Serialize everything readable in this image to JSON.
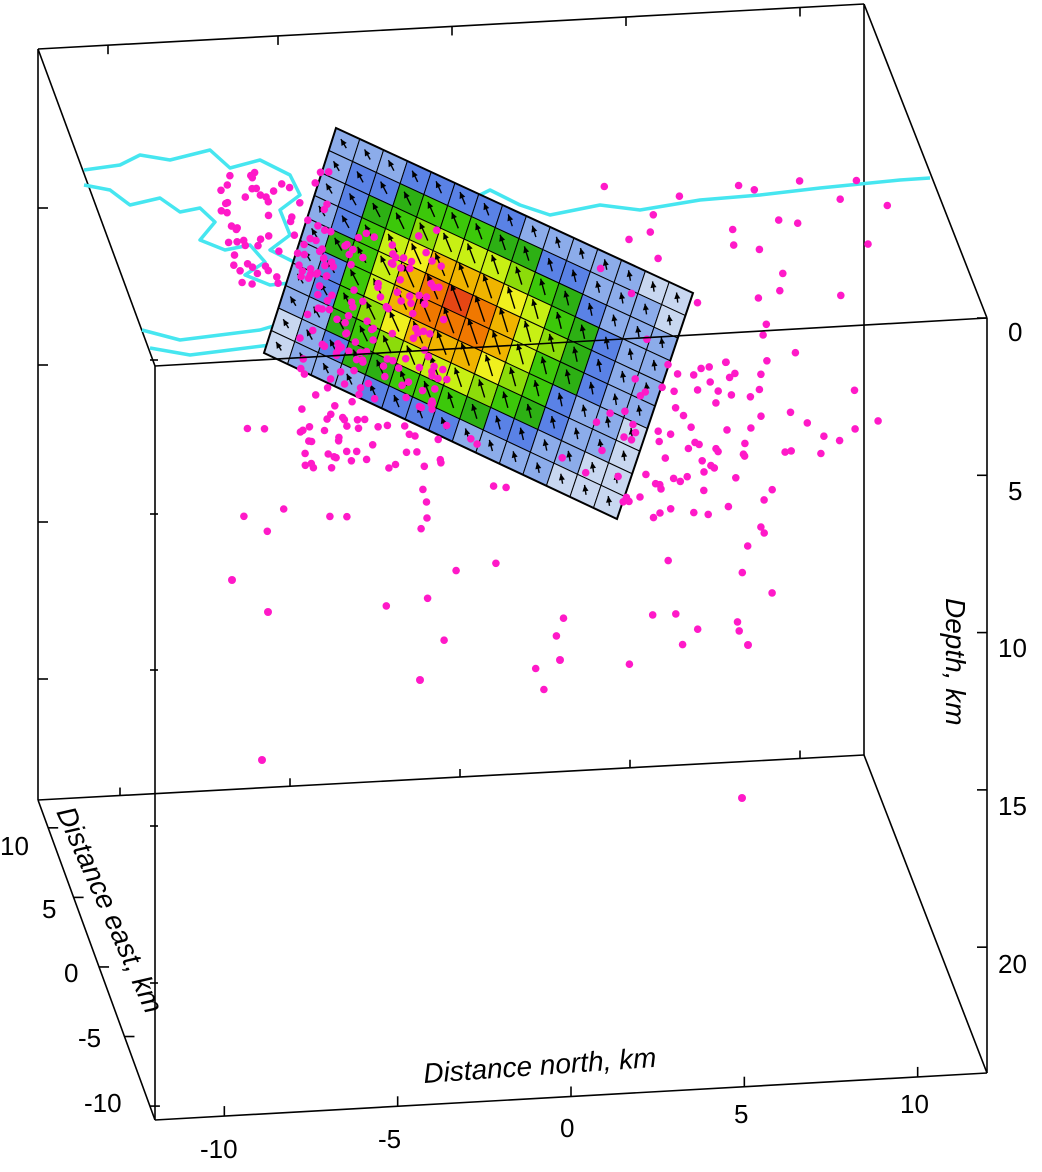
{
  "chart_data": {
    "type": "scatter",
    "title": "",
    "axes": {
      "x": {
        "label": "Distance north, km",
        "ticks": [
          "-10",
          "-5",
          "0",
          "5",
          "10"
        ],
        "range": [
          -12,
          12
        ]
      },
      "y": {
        "label": "Distance east, km",
        "ticks": [
          "10",
          "5",
          "0",
          "-5",
          "-10"
        ],
        "range": [
          -11,
          12
        ]
      },
      "z": {
        "label": "Depth, km",
        "ticks": [
          "0",
          "5",
          "10",
          "15",
          "20"
        ],
        "range": [
          0,
          24
        ]
      }
    },
    "grid": false,
    "series": [
      {
        "kind": "scatter",
        "color": "#ff19c8",
        "count_shown": 400,
        "description_of_distribution": "cluster along the fault plane near -6 km north, depth 2-5 km, scattered to 15 km depth",
        "points_depth_km": [
          1,
          1.5,
          2,
          2.5,
          3,
          3.5,
          4,
          4.5,
          5,
          5.5,
          6,
          7,
          8,
          9,
          10,
          11,
          13,
          15
        ]
      },
      {
        "kind": "fault-slip-grid",
        "rows": 10,
        "cols": 15,
        "colormap": [
          "#c8d7f0",
          "#8cacea",
          "#5a82e6",
          "#2db014",
          "#3cc80a",
          "#8cdc0a",
          "#c8f014",
          "#f0f01e",
          "#f0b400",
          "#f07800",
          "#e64614"
        ],
        "slip_values": [
          [
            0.05,
            0.1,
            0.12,
            0.15,
            0.18,
            0.2,
            0.18,
            0.15,
            0.12,
            0.1,
            0.08,
            0.06,
            0.05,
            0.04,
            0.03
          ],
          [
            0.08,
            0.15,
            0.22,
            0.3,
            0.36,
            0.4,
            0.38,
            0.34,
            0.28,
            0.22,
            0.16,
            0.12,
            0.08,
            0.06,
            0.04
          ],
          [
            0.1,
            0.2,
            0.32,
            0.44,
            0.52,
            0.58,
            0.6,
            0.56,
            0.48,
            0.38,
            0.28,
            0.18,
            0.12,
            0.08,
            0.05
          ],
          [
            0.12,
            0.24,
            0.4,
            0.56,
            0.68,
            0.78,
            0.84,
            0.8,
            0.7,
            0.56,
            0.4,
            0.26,
            0.16,
            0.1,
            0.06
          ],
          [
            0.12,
            0.26,
            0.44,
            0.62,
            0.78,
            0.9,
            0.98,
            0.94,
            0.82,
            0.64,
            0.46,
            0.3,
            0.18,
            0.1,
            0.06
          ],
          [
            0.1,
            0.24,
            0.42,
            0.6,
            0.76,
            0.88,
            0.94,
            0.9,
            0.78,
            0.62,
            0.44,
            0.28,
            0.16,
            0.1,
            0.05
          ],
          [
            0.08,
            0.2,
            0.36,
            0.52,
            0.66,
            0.76,
            0.8,
            0.76,
            0.66,
            0.52,
            0.36,
            0.22,
            0.14,
            0.08,
            0.04
          ],
          [
            0.06,
            0.14,
            0.26,
            0.4,
            0.5,
            0.58,
            0.6,
            0.56,
            0.48,
            0.38,
            0.26,
            0.16,
            0.1,
            0.06,
            0.03
          ],
          [
            0.04,
            0.1,
            0.18,
            0.26,
            0.34,
            0.38,
            0.4,
            0.36,
            0.3,
            0.24,
            0.16,
            0.1,
            0.06,
            0.04,
            0.02
          ],
          [
            0.02,
            0.05,
            0.08,
            0.12,
            0.16,
            0.18,
            0.18,
            0.16,
            0.14,
            0.1,
            0.07,
            0.05,
            0.03,
            0.02,
            0.01
          ]
        ]
      },
      {
        "kind": "coastline",
        "color": "#46e6f0"
      }
    ]
  }
}
